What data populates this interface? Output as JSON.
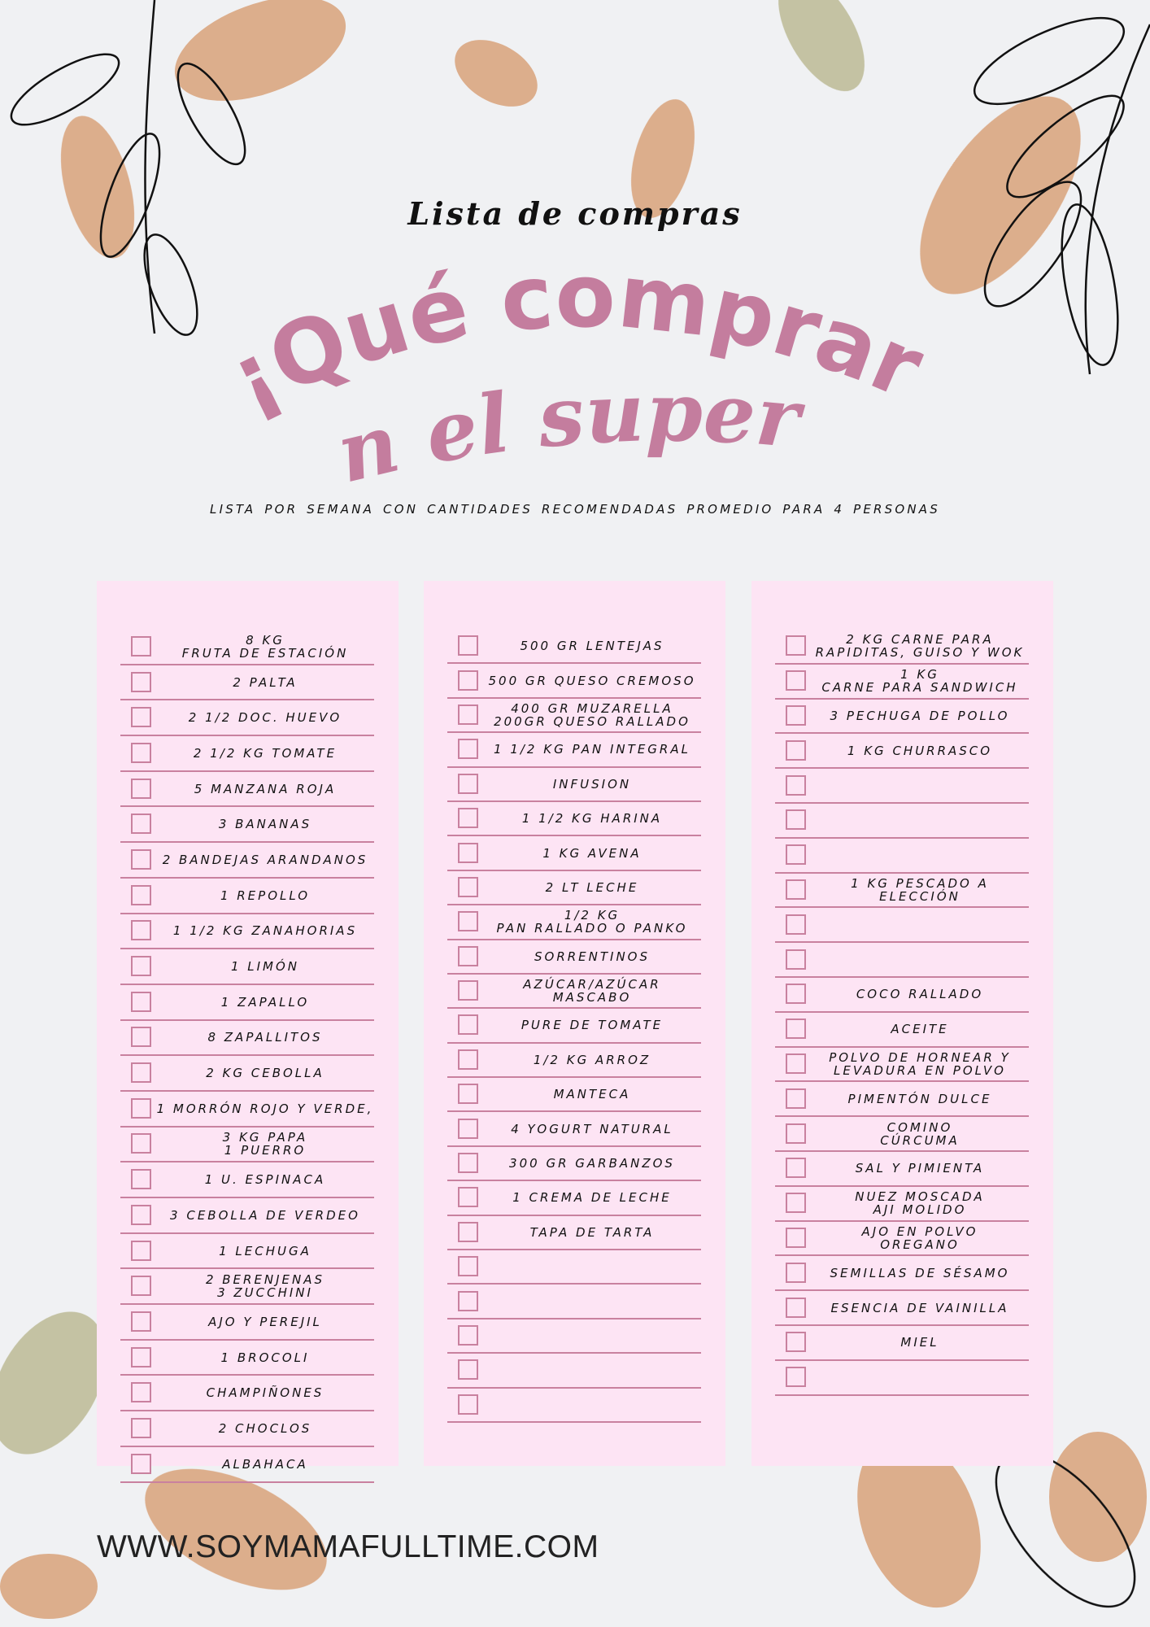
{
  "header": {
    "script_title": "Lista de compras",
    "title_line1": "¡Qué comprar",
    "title_line2": "en el super?",
    "subtitle": "LISTA POR SEMANA  CON CANTIDADES RECOMENDADAS  PROMEDIO PARA 4 PERSONAS",
    "title_color": "#c47d9e"
  },
  "colors": {
    "panel": "#fde4f4",
    "rule": "#c9819f",
    "background": "#f0f1f3"
  },
  "columns": [
    {
      "items": [
        "8 KG\nFRUTA DE ESTACIÓN",
        "2 PALTA",
        "2 1/2 DOC. HUEVO",
        "2 1/2 KG TOMATE",
        "5 MANZANA ROJA",
        "3 BANANAS",
        "2 BANDEJAS ARANDANOS",
        "1 REPOLLO",
        "1 1/2 KG ZANAHORIAS",
        "1 LIMÓN",
        "1 ZAPALLO",
        "8 ZAPALLITOS",
        "2 KG CEBOLLA",
        "1 MORRÓN ROJO Y VERDE,",
        "3 KG PAPA\n1 PUERRO",
        "1 U. ESPINACA",
        "3 CEBOLLA DE VERDEO",
        "1 LECHUGA",
        "2 BERENJENAS\n3 ZUCCHINI",
        "AJO Y PEREJIL",
        "1 BROCOLI",
        "CHAMPIÑONES",
        "2 CHOCLOS",
        "ALBAHACA"
      ]
    },
    {
      "items": [
        "500 GR LENTEJAS",
        "500 GR QUESO CREMOSO",
        "400 GR MUZARELLA\n200GR QUESO RALLADO",
        "1 1/2 KG PAN INTEGRAL",
        "INFUSION",
        "1 1/2 KG HARINA",
        "1 KG AVENA",
        "2 LT LECHE",
        "1/2 KG\nPAN RALLADO O PANKO",
        "SORRENTINOS",
        "AZÚCAR/AZÚCAR MASCABO",
        "PURE DE TOMATE",
        "1/2 KG ARROZ",
        "MANTECA",
        "4 YOGURT NATURAL",
        "300 GR GARBANZOS",
        "1 CREMA DE LECHE",
        "TAPA DE TARTA",
        "",
        "",
        "",
        "",
        ""
      ]
    },
    {
      "items": [
        "2 KG CARNE PARA\nRAPIDITAS, GUISO Y  WOK",
        "1 KG\nCARNE PARA SANDWICH",
        "3 PECHUGA DE POLLO",
        "1 KG CHURRASCO",
        "",
        "",
        "",
        "1 KG PESCADO A ELECCIÓN",
        "",
        "",
        "COCO RALLADO",
        "ACEITE",
        "POLVO DE HORNEAR Y\nLEVADURA EN POLVO",
        "PIMENTÓN DULCE",
        "COMINO\nCÚRCUMA",
        "SAL Y PIMIENTA",
        "NUEZ MOSCADA\nAJI MOLIDO",
        "AJO EN POLVO\nOREGANO",
        "SEMILLAS DE SÉSAMO",
        "ESENCIA DE VAINILLA",
        "MIEL",
        ""
      ]
    }
  ],
  "footer": {
    "url": "WWW.SOYMAMAFULLTIME.COM"
  }
}
